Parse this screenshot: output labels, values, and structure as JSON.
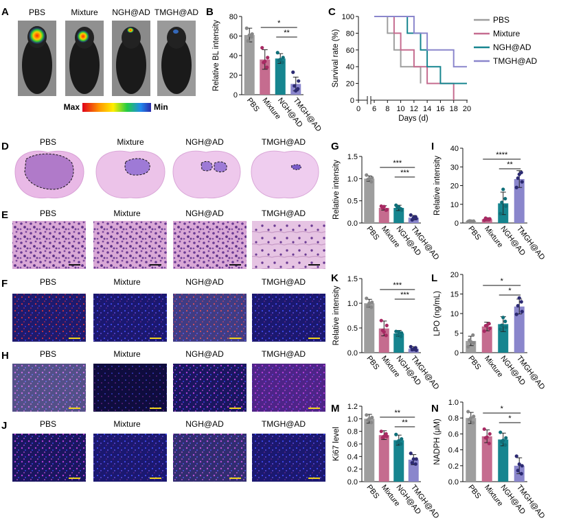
{
  "colors": {
    "PBS": "#9e9e9e",
    "Mixture": "#c56c8f",
    "NGH@AD": "#16858f",
    "TMGH@AD": "#8a86cc",
    "sig_dark": "#2c2a72",
    "fluor_bg": "#1e1a78"
  },
  "group_names": [
    "PBS",
    "Mixture",
    "NGH@AD",
    "TMGH@AD"
  ],
  "panel_letters": {
    "A": "A",
    "B": "B",
    "C": "C",
    "D": "D",
    "E": "E",
    "F": "F",
    "G": "G",
    "H": "H",
    "I": "I",
    "J": "J",
    "K": "K",
    "L": "L",
    "M": "M",
    "N": "N"
  },
  "colorbar": {
    "max": "Max",
    "min": "Min"
  },
  "image_panels": {
    "A": "BLI mice",
    "D": "H&E whole brain with tumor outline",
    "E": "H&E high magnification",
    "F": "fluorescence red/blue",
    "H": "fluorescence magenta/blue",
    "J": "fluorescence magenta/blue sparse"
  },
  "chart_data": [
    {
      "id": "B",
      "type": "bar",
      "categories": [
        "PBS",
        "Mixture",
        "NGH@AD",
        "TMGH@AD"
      ],
      "values": [
        61,
        36,
        37,
        11
      ],
      "errors": [
        7,
        10,
        5,
        7
      ],
      "points": [
        [
          68,
          62,
          55,
          59,
          61
        ],
        [
          48,
          38,
          33,
          28,
          34
        ],
        [
          43,
          38,
          35,
          33,
          36
        ],
        [
          23,
          14,
          9,
          6,
          4
        ]
      ],
      "ylabel": "Relative BL intensity",
      "ylim": [
        0,
        80
      ],
      "yticks": [
        "0",
        "20",
        "40",
        "60",
        "80"
      ],
      "significance": [
        {
          "from": 1,
          "to": 3,
          "label": "*"
        },
        {
          "from": 2,
          "to": 3,
          "label": "**"
        }
      ]
    },
    {
      "id": "C",
      "type": "line",
      "xlabel": "Days (d)",
      "ylabel": "Survival rate (%)",
      "xticks": [
        "0",
        "6",
        "8",
        "10",
        "12",
        "14",
        "16",
        "18",
        "20"
      ],
      "yticks": [
        "0",
        "20",
        "40",
        "60",
        "80",
        "100"
      ],
      "ylim": [
        0,
        100
      ],
      "series": [
        {
          "name": "PBS",
          "x": [
            6,
            8,
            8,
            9,
            9,
            10,
            10,
            13,
            13
          ],
          "y": [
            100,
            100,
            80,
            80,
            60,
            60,
            40,
            40,
            20
          ]
        },
        {
          "name": "Mixture",
          "x": [
            6,
            9,
            9,
            10,
            10,
            12,
            12,
            14,
            14,
            18,
            18
          ],
          "y": [
            100,
            100,
            80,
            80,
            60,
            60,
            40,
            40,
            20,
            20,
            0
          ]
        },
        {
          "name": "NGH@AD",
          "x": [
            6,
            11,
            11,
            13,
            13,
            14,
            14,
            16,
            16,
            20
          ],
          "y": [
            100,
            100,
            80,
            80,
            60,
            60,
            40,
            40,
            20,
            20
          ]
        },
        {
          "name": "TMGH@AD",
          "x": [
            6,
            12,
            12,
            14,
            14,
            18,
            18,
            20
          ],
          "y": [
            100,
            100,
            80,
            80,
            60,
            60,
            40,
            40
          ]
        }
      ]
    },
    {
      "id": "G",
      "type": "bar",
      "categories": [
        "PBS",
        "Mixture",
        "NGH@AD",
        "TMGH@AD"
      ],
      "values": [
        1.0,
        0.34,
        0.34,
        0.12
      ],
      "errors": [
        0.06,
        0.05,
        0.06,
        0.05
      ],
      "points": [
        [
          1.08,
          1.02,
          0.98,
          0.93,
          1.0
        ],
        [
          0.38,
          0.3,
          0.34,
          0.29,
          0.37
        ],
        [
          0.4,
          0.29,
          0.35,
          0.32,
          0.36
        ],
        [
          0.18,
          0.1,
          0.07,
          0.14,
          0.12
        ]
      ],
      "ylabel": "Relative intensity",
      "ylim": [
        0,
        1.5
      ],
      "yticks": [
        "0.0",
        "0.5",
        "1.0",
        "1.5"
      ],
      "significance": [
        {
          "from": 1,
          "to": 3,
          "label": "***"
        },
        {
          "from": 2,
          "to": 3,
          "label": "***"
        }
      ]
    },
    {
      "id": "I",
      "type": "bar",
      "categories": [
        "PBS",
        "Mixture",
        "NGH@AD",
        "TMGH@AD"
      ],
      "values": [
        1,
        2,
        10.5,
        23.5
      ],
      "errors": [
        0.5,
        0.8,
        6,
        4.5
      ],
      "points": [
        [
          0.8,
          1,
          1.1,
          0.9,
          1
        ],
        [
          1.5,
          2.2,
          2.6,
          1.8,
          2
        ],
        [
          5,
          9,
          11,
          13,
          18
        ],
        [
          19,
          22,
          24,
          27,
          26
        ]
      ],
      "ylabel": "Relative intensity",
      "ylim": [
        0,
        40
      ],
      "yticks": [
        "0",
        "10",
        "20",
        "30",
        "40"
      ],
      "significance": [
        {
          "from": 1,
          "to": 3,
          "label": "****"
        },
        {
          "from": 2,
          "to": 3,
          "label": "**"
        }
      ]
    },
    {
      "id": "K",
      "type": "bar",
      "categories": [
        "PBS",
        "Mixture",
        "NGH@AD",
        "TMGH@AD"
      ],
      "values": [
        1.0,
        0.49,
        0.39,
        0.08
      ],
      "errors": [
        0.08,
        0.15,
        0.06,
        0.04
      ],
      "points": [
        [
          1.1,
          1.02,
          0.95,
          0.92,
          1.0
        ],
        [
          0.65,
          0.55,
          0.45,
          0.35,
          0.42
        ],
        [
          0.43,
          0.4,
          0.36,
          0.33,
          0.42
        ],
        [
          0.12,
          0.05,
          0.06,
          0.1,
          0.07
        ]
      ],
      "ylabel": "Relative intensity",
      "ylim": [
        0,
        1.5
      ],
      "yticks": [
        "0.0",
        "0.5",
        "1.0",
        "1.5"
      ],
      "significance": [
        {
          "from": 1,
          "to": 3,
          "label": "***"
        },
        {
          "from": 2,
          "to": 3,
          "label": "***"
        }
      ]
    },
    {
      "id": "L",
      "type": "bar",
      "categories": [
        "PBS",
        "Mixture",
        "NGH@AD",
        "TMGH@AD"
      ],
      "values": [
        3.0,
        6.7,
        7.3,
        11.8
      ],
      "errors": [
        1.2,
        1.1,
        1.9,
        1.9
      ],
      "points": [
        [
          1.5,
          2.5,
          3.2,
          4.5,
          2.8
        ],
        [
          5.5,
          6.2,
          6.9,
          7.4,
          7.0
        ],
        [
          6.0,
          6.5,
          7.0,
          8.0,
          9.0
        ],
        [
          9.8,
          10.5,
          12.0,
          13.0,
          14.0
        ]
      ],
      "ylabel": "LPO (ng/mL)",
      "ylim": [
        0,
        20
      ],
      "yticks": [
        "0",
        "5",
        "10",
        "15",
        "20"
      ],
      "significance": [
        {
          "from": 1,
          "to": 3,
          "label": "*"
        },
        {
          "from": 2,
          "to": 3,
          "label": "*"
        }
      ]
    },
    {
      "id": "M",
      "type": "bar",
      "categories": [
        "PBS",
        "Mixture",
        "NGH@AD",
        "TMGH@AD"
      ],
      "values": [
        1.0,
        0.74,
        0.66,
        0.35
      ],
      "errors": [
        0.07,
        0.07,
        0.08,
        0.08
      ],
      "points": [
        [
          1.06,
          1.02,
          0.98,
          0.94,
          1.0
        ],
        [
          0.8,
          0.72,
          0.7,
          0.76,
          0.72
        ],
        [
          0.75,
          0.68,
          0.62,
          0.6,
          0.65
        ],
        [
          0.45,
          0.36,
          0.3,
          0.28,
          0.36
        ]
      ],
      "ylabel": "Ki67 level",
      "ylim": [
        0,
        1.2
      ],
      "yticks": [
        "0.0",
        "0.2",
        "0.4",
        "0.6",
        "0.8",
        "1.0",
        "1.2"
      ],
      "significance": [
        {
          "from": 1,
          "to": 3,
          "label": "**"
        },
        {
          "from": 2,
          "to": 3,
          "label": "**"
        }
      ]
    },
    {
      "id": "N",
      "type": "bar",
      "categories": [
        "PBS",
        "Mixture",
        "NGH@AD",
        "TMGH@AD"
      ],
      "values": [
        0.8,
        0.57,
        0.53,
        0.2
      ],
      "errors": [
        0.07,
        0.08,
        0.08,
        0.1
      ],
      "points": [
        [
          0.88,
          0.82,
          0.78,
          0.74,
          0.8
        ],
        [
          0.66,
          0.6,
          0.55,
          0.48,
          0.56
        ],
        [
          0.62,
          0.55,
          0.5,
          0.46,
          0.52
        ],
        [
          0.32,
          0.2,
          0.14,
          0.1,
          0.22
        ]
      ],
      "ylabel": "NADPH (μM)",
      "ylim": [
        0,
        1.0
      ],
      "yticks": [
        "0.0",
        "0.2",
        "0.4",
        "0.6",
        "0.8",
        "1.0"
      ],
      "significance": [
        {
          "from": 1,
          "to": 3,
          "label": "*"
        },
        {
          "from": 2,
          "to": 3,
          "label": "*"
        }
      ]
    }
  ]
}
